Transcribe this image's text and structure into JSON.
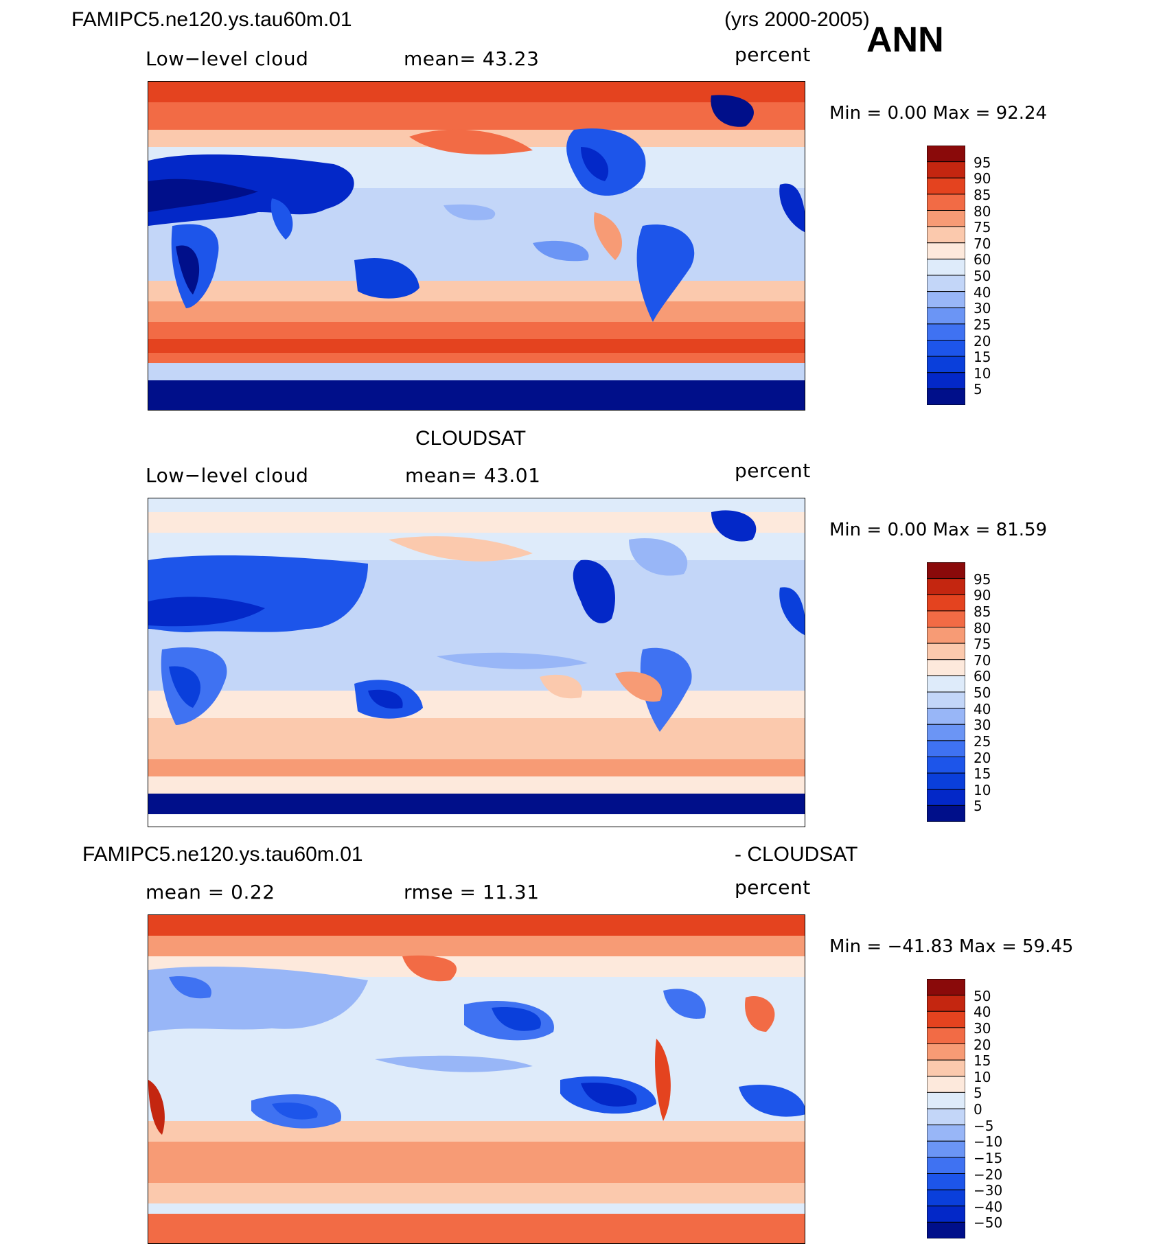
{
  "header": {
    "case_name": "FAMIPC5.ne120.ys.tau60m.01",
    "years": "(yrs 2000-2005)",
    "season": "ANN"
  },
  "panels": [
    {
      "title": "",
      "variable": "Low−level cloud",
      "mean_label": "mean=   43.23",
      "units": "percent",
      "minmax": "Min =     0.00 Max =   92.24",
      "colorbar_labels": [
        "95",
        "90",
        "85",
        "80",
        "75",
        "70",
        "60",
        "50",
        "40",
        "30",
        "25",
        "20",
        "15",
        "10",
        "5"
      ]
    },
    {
      "title": "CLOUDSAT",
      "variable": "Low−level cloud",
      "mean_label": "mean=   43.01",
      "units": "percent",
      "minmax": "Min =     0.00 Max =   81.59",
      "colorbar_labels": [
        "95",
        "90",
        "85",
        "80",
        "75",
        "70",
        "60",
        "50",
        "40",
        "30",
        "25",
        "20",
        "15",
        "10",
        "5"
      ]
    },
    {
      "title_left": "FAMIPC5.ne120.ys.tau60m.01",
      "title_right": "- CLOUDSAT",
      "mean_label": "mean =    0.22",
      "rmse_label": "rmse =   11.31",
      "units": "percent",
      "minmax": "Min = −41.83 Max =   59.45",
      "colorbar_labels": [
        "50",
        "40",
        "30",
        "20",
        "15",
        "10",
        "5",
        "0",
        "−5",
        "−10",
        "−15",
        "−20",
        "−30",
        "−40",
        "−50"
      ]
    }
  ],
  "colorbar_colors": [
    "#000f8a",
    "#0328c8",
    "#0a3fdb",
    "#1d55ea",
    "#3f72f2",
    "#6b95f5",
    "#98b6f7",
    "#c3d6f8",
    "#deebfa",
    "#fde9dc",
    "#fbc9ad",
    "#f79b75",
    "#f26b45",
    "#e4431f",
    "#c42610",
    "#8a0a0a"
  ],
  "chart_data": [
    {
      "type": "heatmap",
      "title": "FAMIPC5.ne120.ys.tau60m.01 Low-level cloud (yrs 2000-2005) ANN",
      "variable": "Low-level cloud",
      "units": "percent",
      "mean": 43.23,
      "min": 0.0,
      "max": 92.24,
      "contour_levels": [
        5,
        10,
        15,
        20,
        25,
        30,
        40,
        50,
        60,
        70,
        75,
        80,
        85,
        90,
        95
      ]
    },
    {
      "type": "heatmap",
      "title": "CLOUDSAT Low-level cloud",
      "variable": "Low-level cloud",
      "units": "percent",
      "mean": 43.01,
      "min": 0.0,
      "max": 81.59,
      "contour_levels": [
        5,
        10,
        15,
        20,
        25,
        30,
        40,
        50,
        60,
        70,
        75,
        80,
        85,
        90,
        95
      ]
    },
    {
      "type": "heatmap",
      "title": "FAMIPC5.ne120.ys.tau60m.01 - CLOUDSAT",
      "units": "percent",
      "mean": 0.22,
      "rmse": 11.31,
      "min": -41.83,
      "max": 59.45,
      "contour_levels": [
        -50,
        -40,
        -30,
        -20,
        -15,
        -10,
        -5,
        0,
        5,
        10,
        15,
        20,
        30,
        40,
        50
      ]
    }
  ]
}
